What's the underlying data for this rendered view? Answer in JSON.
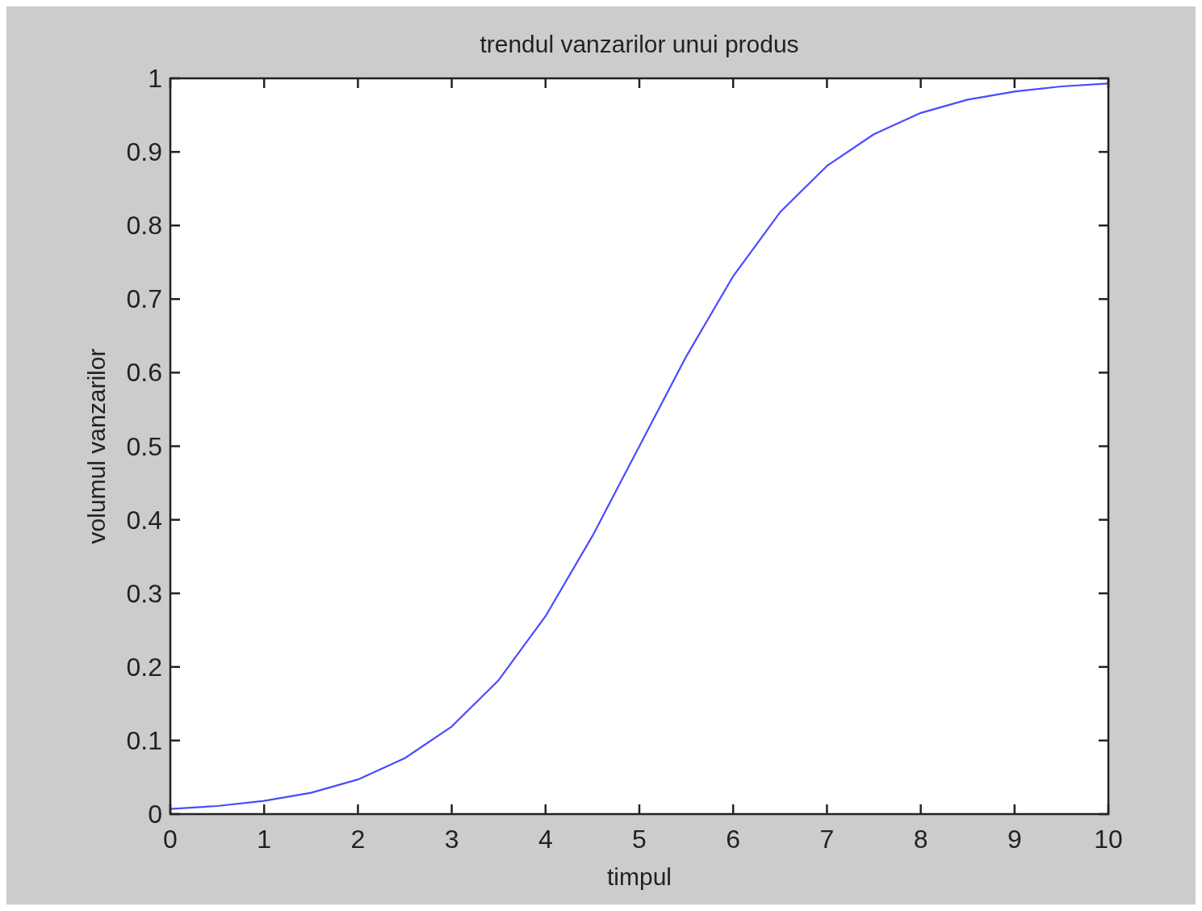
{
  "chart_data": {
    "type": "line",
    "title": "trendul vanzarilor unui produs",
    "xlabel": "timpul",
    "ylabel": "volumul vanzarilor",
    "x": [
      0,
      0.5,
      1,
      1.5,
      2,
      2.5,
      3,
      3.5,
      4,
      4.5,
      5,
      5.5,
      6,
      6.5,
      7,
      7.5,
      8,
      8.5,
      9,
      9.5,
      10
    ],
    "series": [
      {
        "color": "#4b4bff",
        "values": [
          0.007,
          0.011,
          0.018,
          0.029,
          0.047,
          0.076,
          0.119,
          0.182,
          0.269,
          0.378,
          0.5,
          0.622,
          0.731,
          0.818,
          0.881,
          0.924,
          0.953,
          0.971,
          0.982,
          0.989,
          0.993
        ]
      }
    ],
    "xlim": [
      0,
      10
    ],
    "ylim": [
      0,
      1
    ],
    "xticks": [
      0,
      1,
      2,
      3,
      4,
      5,
      6,
      7,
      8,
      9,
      10
    ],
    "yticks": [
      0,
      0.1,
      0.2,
      0.3,
      0.4,
      0.5,
      0.6,
      0.7,
      0.8,
      0.9,
      1
    ],
    "grid": false,
    "marker": "none",
    "line_style": "solid"
  }
}
